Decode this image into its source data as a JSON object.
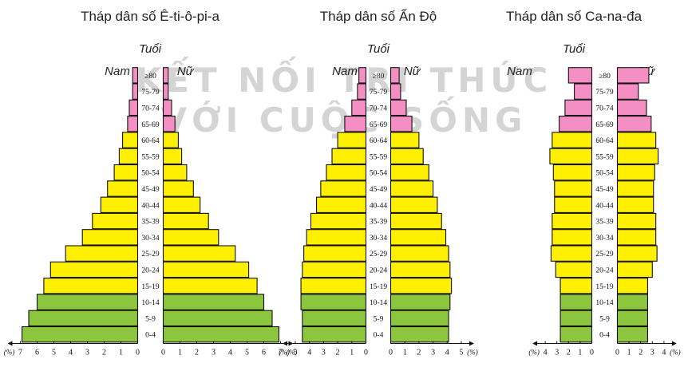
{
  "watermark": {
    "line1": "KẾT NỐI TRI THỨC",
    "line2": "VỚI CUỘC SỐNG"
  },
  "colors": {
    "young": "#8cc63f",
    "adult": "#ffef00",
    "old": "#f48fc4",
    "stroke": "#111111"
  },
  "chart_data": [
    {
      "type": "bar",
      "title": "Tháp dân số Ê-ti-ô-pi-a",
      "age_label": "Tuổi",
      "male_label": "Nam",
      "female_label": "Nữ",
      "categories": [
        "0-4",
        "5-9",
        "10-14",
        "15-19",
        "20-24",
        "25-29",
        "30-34",
        "35-39",
        "40-44",
        "45-49",
        "50-54",
        "55-59",
        "60-64",
        "65-69",
        "70-74",
        "75-79",
        "≥80"
      ],
      "series": [
        {
          "name": "Nam",
          "values": [
            6.9,
            6.5,
            6.0,
            5.6,
            5.2,
            4.3,
            3.3,
            2.7,
            2.2,
            1.8,
            1.4,
            1.1,
            0.9,
            0.6,
            0.5,
            0.3,
            0.3
          ]
        },
        {
          "name": "Nữ",
          "values": [
            6.9,
            6.5,
            6.0,
            5.6,
            5.1,
            4.3,
            3.3,
            2.7,
            2.2,
            1.8,
            1.4,
            1.1,
            0.9,
            0.7,
            0.5,
            0.3,
            0.3
          ]
        }
      ],
      "xlim": [
        0,
        7
      ],
      "left_ticks": [
        "7",
        "6",
        "5",
        "4",
        "3",
        "2",
        "1",
        "0"
      ],
      "right_ticks": [
        "0",
        "1",
        "2",
        "3",
        "4",
        "5",
        "6",
        "7"
      ],
      "unit": "(%)"
    },
    {
      "type": "bar",
      "title": "Tháp dân số Ấn Độ",
      "age_label": "Tuổi",
      "male_label": "Nam",
      "female_label": "Nữ",
      "categories": [
        "0-4",
        "5-9",
        "10-14",
        "15-19",
        "20-24",
        "25-29",
        "30-34",
        "35-39",
        "40-44",
        "45-49",
        "50-54",
        "55-59",
        "60-64",
        "65-69",
        "70-74",
        "75-79",
        "≥80"
      ],
      "series": [
        {
          "name": "Nam",
          "values": [
            4.5,
            4.5,
            4.6,
            4.6,
            4.5,
            4.4,
            4.2,
            3.9,
            3.5,
            3.2,
            2.8,
            2.4,
            2.0,
            1.5,
            1.0,
            0.6,
            0.5
          ]
        },
        {
          "name": "Nữ",
          "values": [
            4.1,
            4.1,
            4.2,
            4.3,
            4.2,
            4.1,
            3.9,
            3.6,
            3.3,
            3.0,
            2.7,
            2.3,
            2.0,
            1.5,
            1.1,
            0.7,
            0.6
          ]
        }
      ],
      "xlim": [
        0,
        5
      ],
      "left_ticks": [
        "5",
        "4",
        "3",
        "2",
        "1",
        "0"
      ],
      "right_ticks": [
        "0",
        "1",
        "2",
        "3",
        "4",
        "5"
      ],
      "unit": "(%)"
    },
    {
      "type": "bar",
      "title": "Tháp dân số Ca-na-đa",
      "age_label": "Tuổi",
      "male_label": "Nam",
      "female_label": "Nữ",
      "categories": [
        "0-4",
        "5-9",
        "10-14",
        "15-19",
        "20-24",
        "25-29",
        "30-34",
        "35-39",
        "40-44",
        "45-49",
        "50-54",
        "55-59",
        "60-64",
        "65-69",
        "70-74",
        "75-79",
        "≥80"
      ],
      "series": [
        {
          "name": "Nam",
          "values": [
            2.7,
            2.7,
            2.7,
            2.7,
            3.1,
            3.5,
            3.4,
            3.4,
            3.2,
            3.2,
            3.3,
            3.6,
            3.4,
            2.8,
            2.3,
            1.5,
            2.0
          ]
        },
        {
          "name": "Nữ",
          "values": [
            2.6,
            2.6,
            2.6,
            2.6,
            3.0,
            3.4,
            3.3,
            3.3,
            3.1,
            3.1,
            3.2,
            3.5,
            3.3,
            2.9,
            2.5,
            1.8,
            2.7
          ]
        }
      ],
      "xlim": [
        0,
        4
      ],
      "left_ticks": [
        "4",
        "3",
        "2",
        "1",
        "0"
      ],
      "right_ticks": [
        "0",
        "1",
        "2",
        "3",
        "4"
      ],
      "unit": "(%)"
    }
  ]
}
